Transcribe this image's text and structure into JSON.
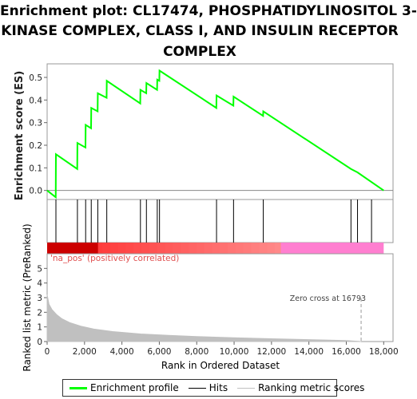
{
  "title_lines": [
    "Enrichment plot: CL17474, PHOSPHATIDYLINOSITOL 3-",
    "KINASE COMPLEX, CLASS I, AND INSULIN RECEPTOR",
    "COMPLEX"
  ],
  "colors": {
    "es_line": "#00ff00",
    "hits": "#000000",
    "metric_fill": "#c0c0c0",
    "pos_band": "#ff0000",
    "neg_band": "#ff7fd0",
    "zero_line": "#888888"
  },
  "chart_data": {
    "type": "line",
    "x_range": [
      0,
      18500
    ],
    "x_ticks": [
      0,
      2000,
      4000,
      6000,
      8000,
      10000,
      12000,
      14000,
      16000,
      18000
    ],
    "x_tick_labels": [
      "0",
      "2,000",
      "4,000",
      "6,000",
      "8,000",
      "10,000",
      "12,000",
      "14,000",
      "16,000",
      "18,000"
    ],
    "xlabel": "Rank in Ordered Dataset",
    "es_panel": {
      "ylabel": "Enrichment score (ES)",
      "ylim": [
        -0.04,
        0.56
      ],
      "y_ticks": [
        0.0,
        0.1,
        0.2,
        0.3,
        0.4,
        0.5
      ],
      "y_tick_labels": [
        "0.0",
        "0.1",
        "0.2",
        "0.3",
        "0.4",
        "0.5"
      ],
      "points": [
        [
          0,
          0.0
        ],
        [
          460,
          -0.03
        ],
        [
          470,
          0.16
        ],
        [
          1610,
          0.095
        ],
        [
          1620,
          0.21
        ],
        [
          2050,
          0.19
        ],
        [
          2060,
          0.29
        ],
        [
          2350,
          0.275
        ],
        [
          2360,
          0.365
        ],
        [
          2700,
          0.35
        ],
        [
          2710,
          0.43
        ],
        [
          3180,
          0.41
        ],
        [
          3190,
          0.485
        ],
        [
          4980,
          0.385
        ],
        [
          4990,
          0.445
        ],
        [
          5300,
          0.43
        ],
        [
          5310,
          0.475
        ],
        [
          5880,
          0.445
        ],
        [
          5890,
          0.49
        ],
        [
          6000,
          0.485
        ],
        [
          6010,
          0.53
        ],
        [
          9050,
          0.365
        ],
        [
          9060,
          0.42
        ],
        [
          9960,
          0.375
        ],
        [
          9970,
          0.415
        ],
        [
          11550,
          0.33
        ],
        [
          11560,
          0.35
        ],
        [
          16250,
          0.095
        ],
        [
          16600,
          0.08
        ],
        [
          18000,
          0.0
        ]
      ]
    },
    "hits": [
      470,
      1620,
      2060,
      2360,
      2710,
      3190,
      4990,
      5310,
      5890,
      6010,
      9060,
      9970,
      11560,
      16250,
      16600,
      17350
    ],
    "metric_panel": {
      "ylabel": "Ranked list metric (PreRanked)",
      "ylim": [
        0,
        6
      ],
      "y_ticks": [
        0,
        1,
        2,
        3,
        4,
        5
      ],
      "y_tick_labels": [
        "0",
        "1",
        "2",
        "3",
        "4",
        "5"
      ],
      "curve": [
        [
          0,
          3.2
        ],
        [
          100,
          2.55
        ],
        [
          250,
          2.2
        ],
        [
          500,
          1.85
        ],
        [
          800,
          1.55
        ],
        [
          1200,
          1.3
        ],
        [
          1800,
          1.05
        ],
        [
          2500,
          0.85
        ],
        [
          3500,
          0.68
        ],
        [
          5000,
          0.52
        ],
        [
          6500,
          0.42
        ],
        [
          8000,
          0.34
        ],
        [
          10000,
          0.26
        ],
        [
          12000,
          0.19
        ],
        [
          14000,
          0.13
        ],
        [
          16000,
          0.07
        ],
        [
          16793,
          0.0
        ]
      ],
      "pos_label": "'na_pos' (positively correlated)",
      "zero_cross_label": "Zero cross at 16793",
      "zero_cross": 16793
    },
    "legend": [
      "Enrichment profile",
      "Hits",
      "Ranking metric scores"
    ]
  }
}
